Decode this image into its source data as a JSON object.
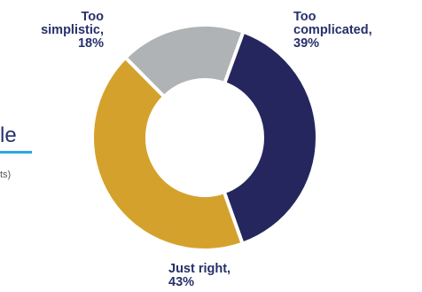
{
  "left_panel": {
    "partial_title": "le",
    "partial_note": "ts)"
  },
  "colors": {
    "accent_rule": "#29a9e0",
    "label_text": "#26306a"
  },
  "chart_data": {
    "type": "pie",
    "donut": true,
    "title": "",
    "slices": [
      {
        "line1": "Too",
        "line2": "complicated,",
        "pct_label": "39%",
        "value": 39,
        "color": "#26265e"
      },
      {
        "line1": "Just right,",
        "line2": "",
        "pct_label": "43%",
        "value": 43,
        "color": "#d4a22c"
      },
      {
        "line1": "Too",
        "line2": "simplistic,",
        "pct_label": "18%",
        "value": 18,
        "color": "#b0b3b5"
      }
    ],
    "start_angle_deg": 20,
    "direction": "clockwise",
    "slice_separator_color": "#ffffff"
  }
}
